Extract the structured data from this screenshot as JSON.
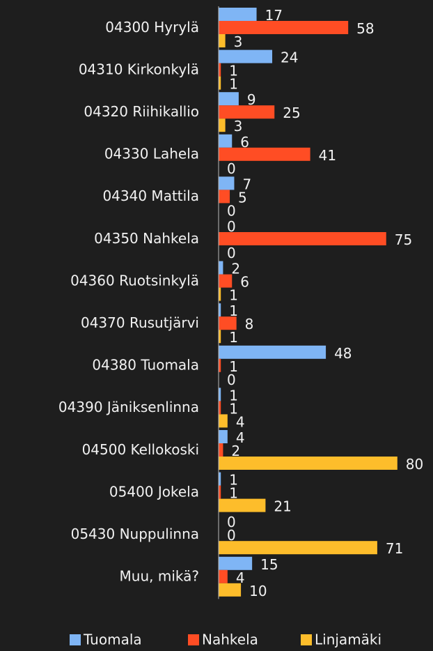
{
  "chart_data": {
    "type": "bar",
    "orientation": "horizontal",
    "categories": [
      "04300 Hyrylä",
      "04310 Kirkonkylä",
      "04320 Riihikallio",
      "04330 Lahela",
      "04340 Mattila",
      "04350 Nahkela",
      "04360 Ruotsinkylä",
      "04370 Rusutjärvi",
      "04380 Tuomala",
      "04390 Jäniksenlinna",
      "04500 Kellokoski",
      "05400 Jokela",
      "05430 Nuppulinna",
      "Muu, mikä?"
    ],
    "series": [
      {
        "name": "Tuomala",
        "color": "#7fb5f5",
        "values": [
          17,
          24,
          9,
          6,
          7,
          0,
          2,
          1,
          48,
          1,
          4,
          1,
          0,
          15
        ]
      },
      {
        "name": "Nahkela",
        "color": "#ff4d24",
        "values": [
          58,
          1,
          25,
          41,
          5,
          75,
          6,
          8,
          1,
          1,
          2,
          1,
          0,
          4
        ]
      },
      {
        "name": "Linjamäki",
        "color": "#fdbd2b",
        "values": [
          3,
          1,
          3,
          0,
          0,
          0,
          1,
          1,
          0,
          4,
          80,
          21,
          71,
          10
        ]
      }
    ],
    "legend": "bottom"
  }
}
